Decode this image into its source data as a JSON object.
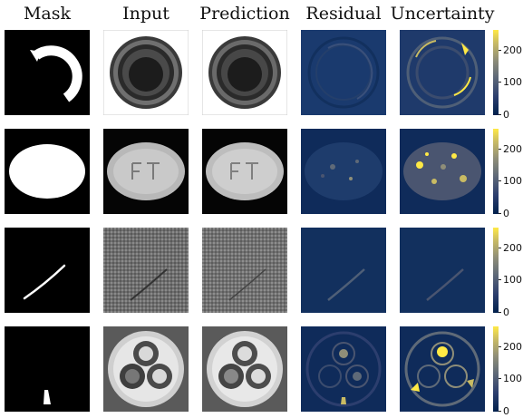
{
  "figure": {
    "columns": [
      "Mask",
      "Input",
      "Prediction",
      "Residual",
      "Uncertainty"
    ],
    "rows": [
      "row-1",
      "row-2",
      "row-3",
      "row-4"
    ],
    "colorbar": {
      "ticks": [
        "0",
        "100",
        "200"
      ],
      "colormap": "cividis"
    },
    "colors": {
      "background": "#ffffff",
      "residual_base": "#0f2b5a",
      "uncertainty_peak": "#ffe945"
    }
  }
}
